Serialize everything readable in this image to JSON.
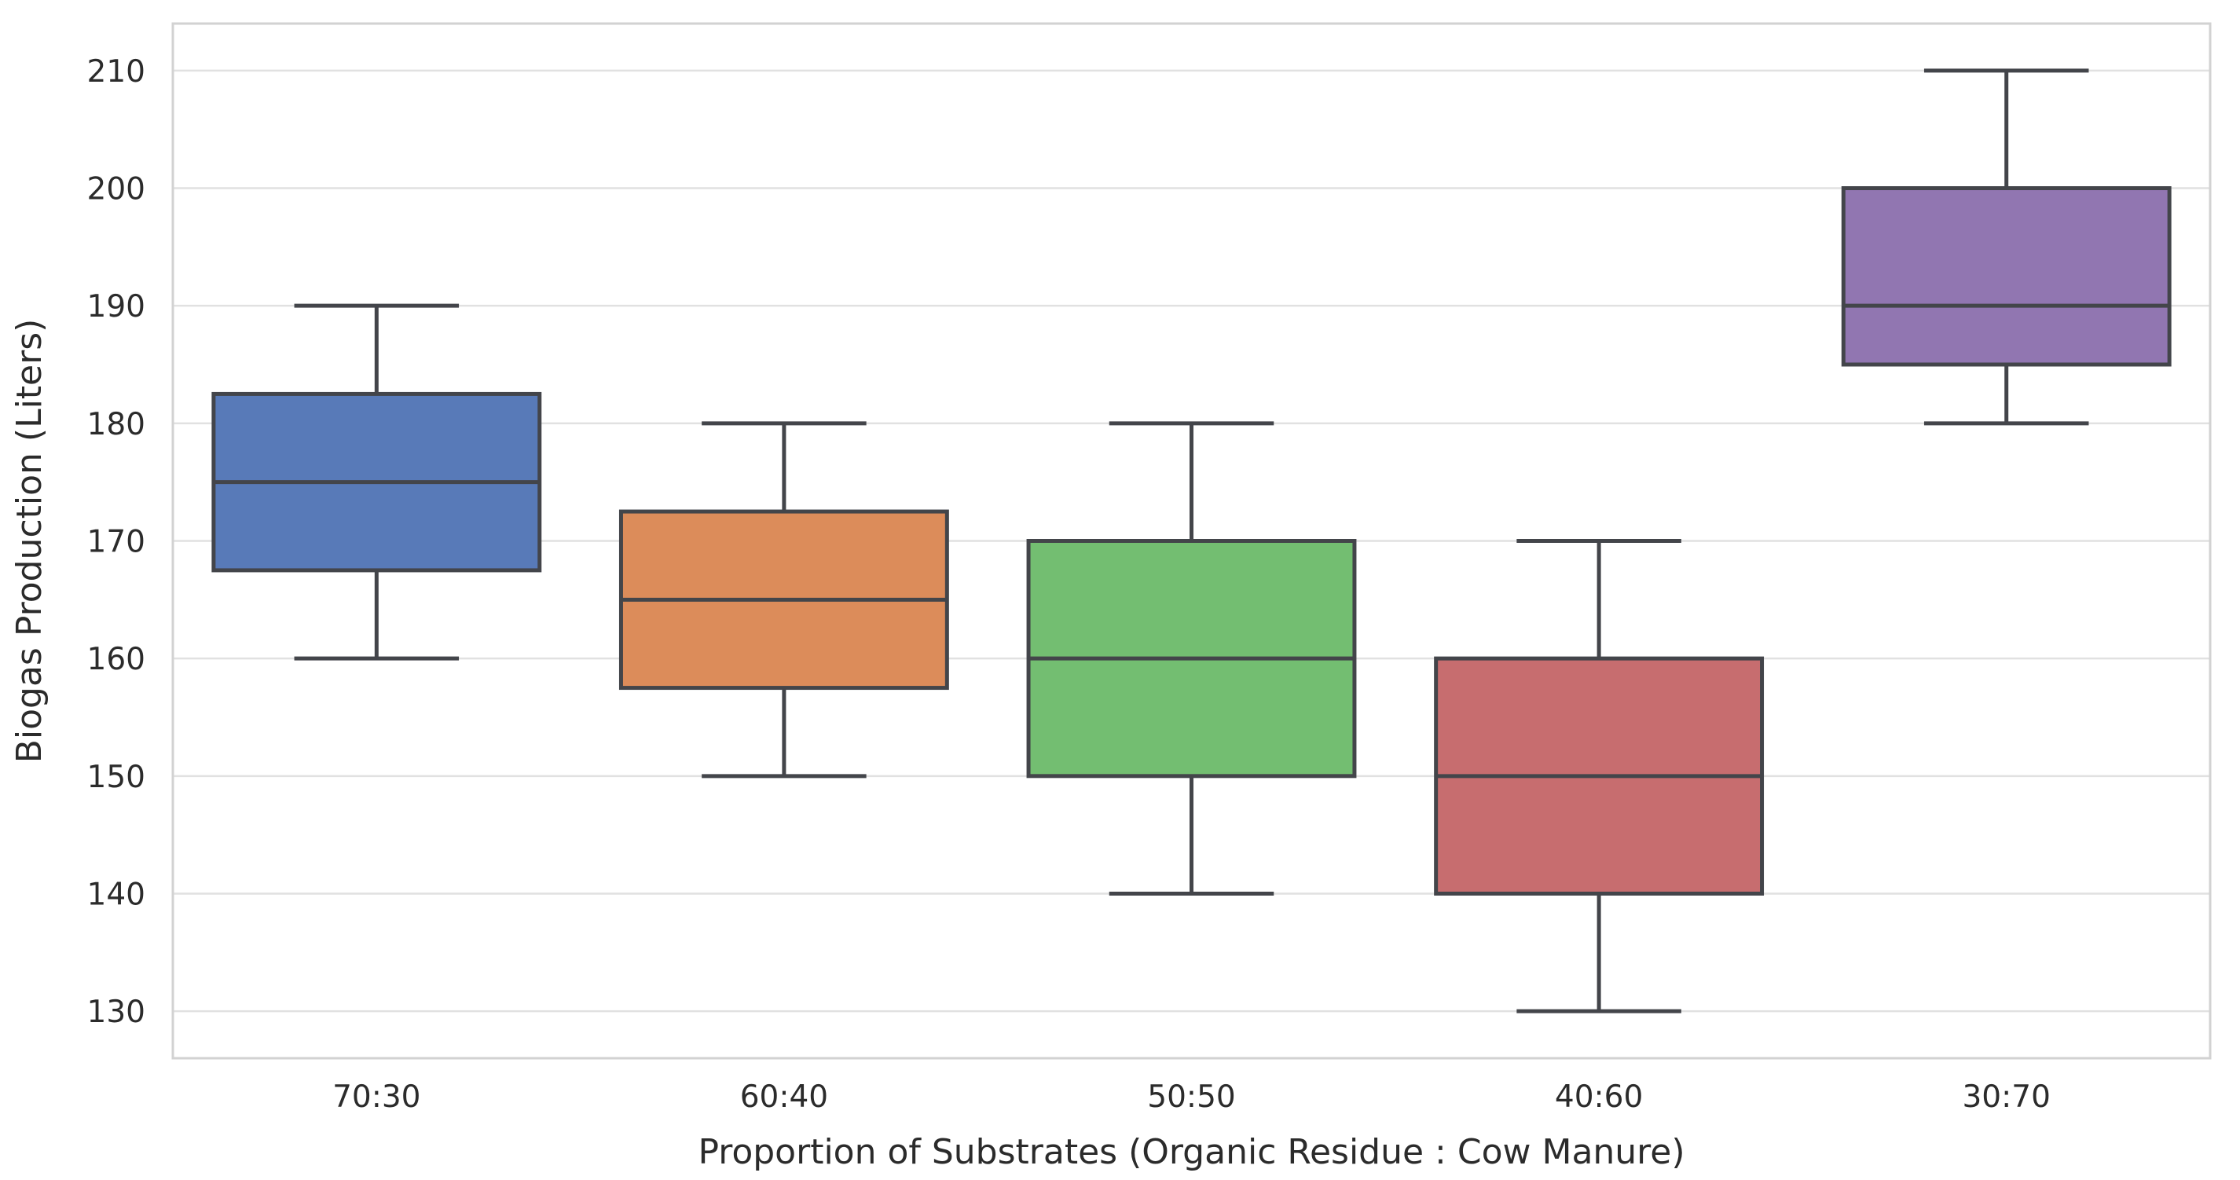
{
  "chart_data": {
    "type": "box",
    "title": "",
    "xlabel": "Proportion of Substrates (Organic Residue : Cow Manure)",
    "ylabel": "Biogas Production (Liters)",
    "categories": [
      "70:30",
      "60:40",
      "50:50",
      "40:60",
      "30:70"
    ],
    "yticks": [
      130,
      140,
      150,
      160,
      170,
      180,
      190,
      200,
      210
    ],
    "ylim": [
      126,
      214
    ],
    "grid": "horizontal",
    "legend": "none",
    "boxes": [
      {
        "category": "70:30",
        "whisker_low": 160,
        "q1": 167.5,
        "median": 175,
        "q3": 182.5,
        "whisker_high": 190,
        "color": "#587AB8"
      },
      {
        "category": "60:40",
        "whisker_low": 150,
        "q1": 157.5,
        "median": 165,
        "q3": 172.5,
        "whisker_high": 180,
        "color": "#DC8C5A"
      },
      {
        "category": "50:50",
        "whisker_low": 140,
        "q1": 150,
        "median": 160,
        "q3": 170,
        "whisker_high": 180,
        "color": "#73BE71"
      },
      {
        "category": "40:60",
        "whisker_low": 130,
        "q1": 140,
        "median": 150,
        "q3": 160,
        "whisker_high": 170,
        "color": "#C76D6F"
      },
      {
        "category": "30:70",
        "whisker_low": 180,
        "q1": 185,
        "median": 190,
        "q3": 200,
        "whisker_high": 210,
        "color": "#9176B1"
      }
    ],
    "colors": {
      "box_edge": "#43454A",
      "gridline": "#E1E1E1",
      "spine": "#D2D2D2",
      "text": "#2B2B2B",
      "background": "#FFFFFF"
    }
  }
}
